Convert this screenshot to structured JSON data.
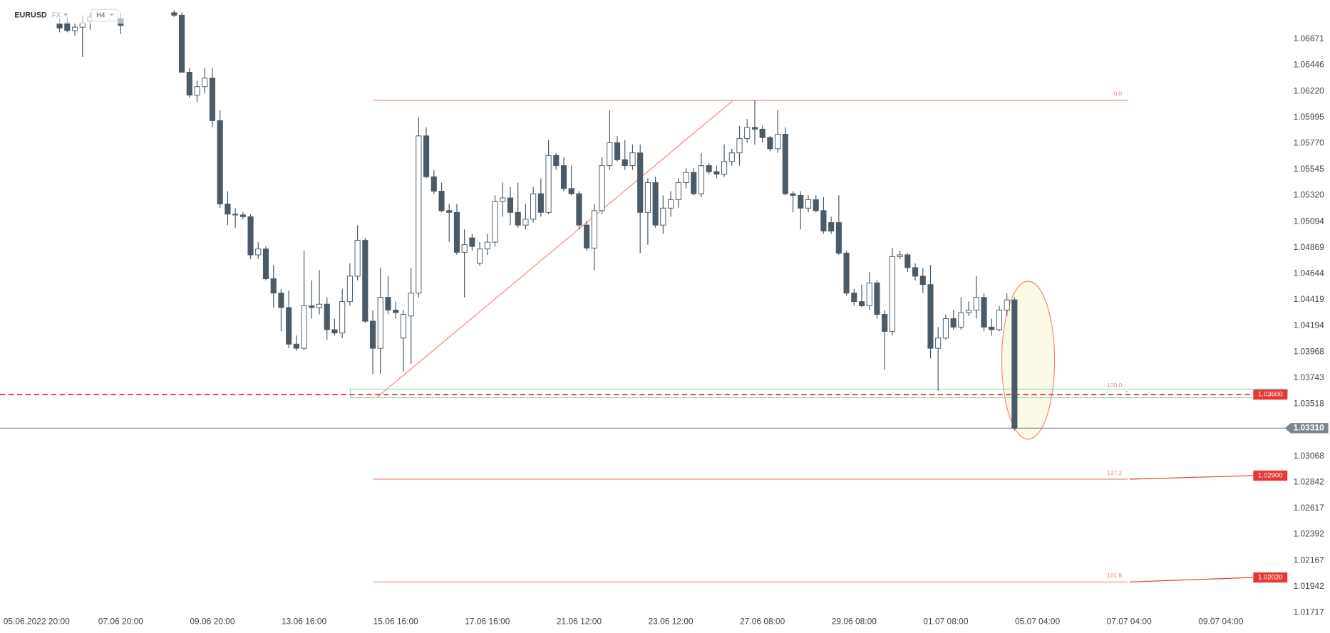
{
  "chart_data": {
    "type": "candlestick",
    "title": "EURUSD",
    "badges": [
      "FX",
      "H4"
    ],
    "grid": false,
    "up_color": "#ffffff",
    "down_color": "#4a5a66",
    "xlim": [
      -3.8,
      163.6
    ],
    "xticks": [
      {
        "value": 0,
        "label": "05.06.2022  20:00"
      },
      {
        "value": 12,
        "label": "07.06  20:00"
      },
      {
        "value": 24,
        "label": "09.06  20:00"
      },
      {
        "value": 36,
        "label": "13.06  16:00"
      },
      {
        "value": 48,
        "label": "15.06  16:00"
      },
      {
        "value": 60,
        "label": "17.06  16:00"
      },
      {
        "value": 72,
        "label": "21.06  12:00"
      },
      {
        "value": 84,
        "label": "23.06  12:00"
      },
      {
        "value": 96,
        "label": "27.06  08:00"
      },
      {
        "value": 108,
        "label": "29.06  08:00"
      },
      {
        "value": 120,
        "label": "01.07  08:00"
      },
      {
        "value": 132,
        "label": "05.07  04:00"
      },
      {
        "value": 144,
        "label": "07.07  04:00"
      },
      {
        "value": 156,
        "label": "09.07  04:00"
      }
    ],
    "ylim": [
      1.01709,
      1.07009
    ],
    "yticks": [
      1.06671,
      1.06446,
      {
        "value": 1.0622,
        "label": "1.06220"
      },
      1.05995,
      {
        "value": 1.0577,
        "label": "1.05770"
      },
      1.05545,
      {
        "value": 1.0532,
        "label": "1.05320"
      },
      1.05094,
      1.04869,
      1.04644,
      1.04419,
      1.04194,
      1.03968,
      1.03743,
      1.03518,
      1.03068,
      1.02842,
      1.02617,
      1.02392,
      1.02167,
      1.01942,
      1.01717
    ],
    "open": [
      null,
      null,
      null,
      null,
      1.06803,
      1.06811,
      1.06745,
      1.06774,
      1.06825,
      null,
      null,
      null,
      1.06848,
      null,
      null,
      null,
      null,
      null,
      null,
      1.06899,
      1.06877,
      1.06385,
      1.06187,
      1.0626,
      1.06334,
      1.05967,
      1.05247,
      1.05159,
      1.05152,
      1.05137,
      1.04807,
      1.04858,
      1.04601,
      1.04477,
      1.04352,
      1.04036,
      1.04,
      1.04367,
      1.04352,
      1.04381,
      1.04161,
      1.04132,
      1.04403,
      1.04623,
      1.04932,
      1.04234,
      1.04,
      1.0444,
      1.0433,
      1.04088,
      1.04279,
      1.04477,
      1.05835,
      1.05482,
      1.05357,
      1.05189,
      1.05174,
      1.04829,
      1.04954,
      1.04734,
      1.04858,
      1.04917,
      1.05269,
      1.05299,
      1.05174,
      1.05064,
      1.05115,
      1.05335,
      1.05174,
      1.05666,
      1.05578,
      1.0538,
      1.05335,
      1.05064,
      1.04866,
      1.05189,
      1.05578,
      1.05776,
      1.05629,
      1.05578,
      1.05688,
      1.05174,
      1.05431,
      1.05064,
      1.05211,
      1.05284,
      1.05431,
      1.05519,
      1.05335,
      1.05578,
      1.05526,
      1.05504,
      1.05614,
      1.05688,
      1.05813,
      1.05908,
      1.05893,
      1.0582,
      1.05724,
      1.05849,
      1.05335,
      1.05321,
      1.05211,
      1.05284,
      1.05189,
      1.05086,
      1.05086,
      1.04822,
      1.04477,
      1.04403,
      1.04367,
      1.04565,
      1.04293,
      1.04146,
      1.04792,
      1.04807,
      1.04697,
      1.04623,
      1.0455,
      1.04,
      1.04088,
      1.04256,
      1.04183,
      1.04308,
      1.0433,
      1.0444,
      1.04183,
      1.04161,
      1.0433,
      1.04418
    ],
    "high": [
      null,
      null,
      null,
      null,
      1.06848,
      1.06862,
      1.06803,
      1.06877,
      1.06899,
      null,
      null,
      null,
      1.06899,
      null,
      null,
      null,
      null,
      null,
      null,
      1.06921,
      1.06899,
      1.06422,
      1.06312,
      1.06422,
      1.06422,
      1.06055,
      1.05357,
      1.05211,
      1.05174,
      1.05159,
      1.04917,
      1.0488,
      1.04719,
      1.04513,
      1.04499,
      1.0411,
      1.04844,
      1.04587,
      1.04675,
      1.0444,
      1.04256,
      1.04513,
      1.04734,
      1.05064,
      1.04954,
      1.0433,
      1.04697,
      1.04623,
      1.04403,
      1.0433,
      1.04697,
      1.05996,
      1.05908,
      1.05541,
      1.05431,
      1.05247,
      1.05247,
      1.05027,
      1.0499,
      1.04917,
      1.0499,
      1.05321,
      1.05431,
      1.05394,
      1.05431,
      1.05247,
      1.05394,
      1.05468,
      1.05798,
      1.05688,
      1.05651,
      1.05578,
      1.05357,
      1.05101,
      1.05247,
      1.05651,
      1.06055,
      1.05835,
      1.05798,
      1.05761,
      1.05761,
      1.05468,
      1.05482,
      1.05321,
      1.05357,
      1.05468,
      1.05556,
      1.05556,
      1.05688,
      1.056,
      1.05578,
      1.05761,
      1.05724,
      1.05923,
      1.05981,
      1.06143,
      1.05923,
      1.05835,
      1.06055,
      1.05908,
      1.05357,
      1.05357,
      1.05321,
      1.05321,
      1.05306,
      1.05137,
      1.05321,
      1.04844,
      1.04513,
      1.0455,
      1.0466,
      1.04587,
      1.0433,
      1.04866,
      1.04844,
      1.04822,
      1.04734,
      1.04697,
      1.04719,
      1.04183,
      1.04293,
      1.0433,
      1.0444,
      1.04403,
      1.04623,
      1.04477,
      1.04256,
      1.04367,
      1.04477,
      1.0444
    ],
    "low": [
      null,
      null,
      null,
      null,
      1.0673,
      1.0673,
      1.06701,
      1.06517,
      1.06752,
      null,
      null,
      null,
      1.06715,
      null,
      null,
      null,
      null,
      null,
      null,
      1.06862,
      1.06385,
      1.06165,
      1.06128,
      1.06202,
      1.05908,
      1.05211,
      1.05064,
      1.05042,
      1.05115,
      1.0477,
      1.0477,
      1.04587,
      1.04352,
      1.04146,
      1.04,
      1.03978,
      1.03985,
      1.04256,
      1.04293,
      1.04073,
      1.0411,
      1.04088,
      1.04367,
      1.04587,
      1.0422,
      1.03779,
      1.03779,
      1.04293,
      1.04256,
      1.03801,
      1.03867,
      1.0444,
      1.05468,
      1.05335,
      1.05174,
      1.04917,
      1.04807,
      1.0444,
      1.04844,
      1.04712,
      1.04807,
      1.0488,
      1.05137,
      1.05064,
      1.05042,
      1.05027,
      1.05086,
      1.05137,
      1.05159,
      1.05541,
      1.05357,
      1.05321,
      1.05027,
      1.04844,
      1.04675,
      1.05159,
      1.05541,
      1.05614,
      1.05541,
      1.05541,
      1.04822,
      1.04895,
      1.05042,
      1.0499,
      1.05137,
      1.05211,
      1.0538,
      1.05321,
      1.05306,
      1.05504,
      1.05468,
      1.05482,
      1.05578,
      1.05578,
      1.05776,
      1.05761,
      1.05776,
      1.05702,
      1.05688,
      1.05321,
      1.05174,
      1.05027,
      1.05174,
      1.05174,
      1.0499,
      1.0499,
      1.04807,
      1.04455,
      1.04367,
      1.04352,
      1.0433,
      1.04256,
      1.03816,
      1.0411,
      1.0477,
      1.0466,
      1.04587,
      1.04477,
      1.03912,
      1.03633,
      1.04073,
      1.04161,
      1.04161,
      1.04279,
      1.04256,
      1.04146,
      1.0411,
      1.04146,
      1.04279,
      1.0329
    ],
    "close": [
      null,
      null,
      null,
      null,
      1.06767,
      1.06745,
      1.06774,
      1.06811,
      1.06862,
      null,
      null,
      null,
      1.06789,
      null,
      null,
      null,
      null,
      null,
      null,
      1.06877,
      1.06385,
      1.06187,
      1.0626,
      1.06334,
      1.05967,
      1.05247,
      1.05159,
      1.05152,
      1.05137,
      1.04807,
      1.04858,
      1.04601,
      1.04477,
      1.04352,
      1.04036,
      1.04,
      1.04367,
      1.04352,
      1.04381,
      1.04161,
      1.04132,
      1.04403,
      1.04623,
      1.04932,
      1.04234,
      1.04,
      1.0444,
      1.0433,
      1.04308,
      1.04293,
      1.04477,
      1.05835,
      1.05482,
      1.05357,
      1.05189,
      1.05174,
      1.04829,
      1.04895,
      1.0488,
      1.04858,
      1.04917,
      1.05269,
      1.05299,
      1.05174,
      1.05064,
      1.05115,
      1.05335,
      1.05174,
      1.05666,
      1.05578,
      1.0538,
      1.05335,
      1.05064,
      1.04866,
      1.05189,
      1.05578,
      1.05776,
      1.05629,
      1.05578,
      1.05688,
      1.05174,
      1.05431,
      1.05064,
      1.05211,
      1.05284,
      1.05431,
      1.05519,
      1.05335,
      1.05578,
      1.05526,
      1.05504,
      1.05614,
      1.05688,
      1.05813,
      1.05908,
      1.05893,
      1.0582,
      1.05724,
      1.05849,
      1.05335,
      1.05321,
      1.05211,
      1.05284,
      1.05189,
      1.05013,
      1.05013,
      1.04822,
      1.04477,
      1.04403,
      1.04367,
      1.04565,
      1.04293,
      1.04146,
      1.04792,
      1.04807,
      1.04697,
      1.04623,
      1.0455,
      1.04,
      1.04088,
      1.04256,
      1.04183,
      1.04308,
      1.0433,
      1.0444,
      1.04183,
      1.04161,
      1.0433,
      1.04418,
      1.0331
    ],
    "fib_levels": [
      {
        "label": "0.0",
        "value": 1.06143
      },
      {
        "label": "100.0",
        "value": 1.03625
      },
      {
        "label": "127.2",
        "value": 1.02869
      },
      {
        "label": "161.8",
        "value": 1.01981
      }
    ],
    "price_tags": [
      {
        "value": 1.036,
        "label": "1.03600",
        "color": "#e53935",
        "line": "dashed"
      },
      {
        "value": 1.0331,
        "label": "1.03310",
        "color": "#7b868f",
        "line": "solid"
      },
      {
        "value": 1.029,
        "label": "1.02900",
        "color": "#e53935",
        "line": "connector",
        "level": 2
      },
      {
        "value": 1.0202,
        "label": "1.02020",
        "color": "#e53935",
        "line": "connector",
        "level": 3
      }
    ]
  }
}
